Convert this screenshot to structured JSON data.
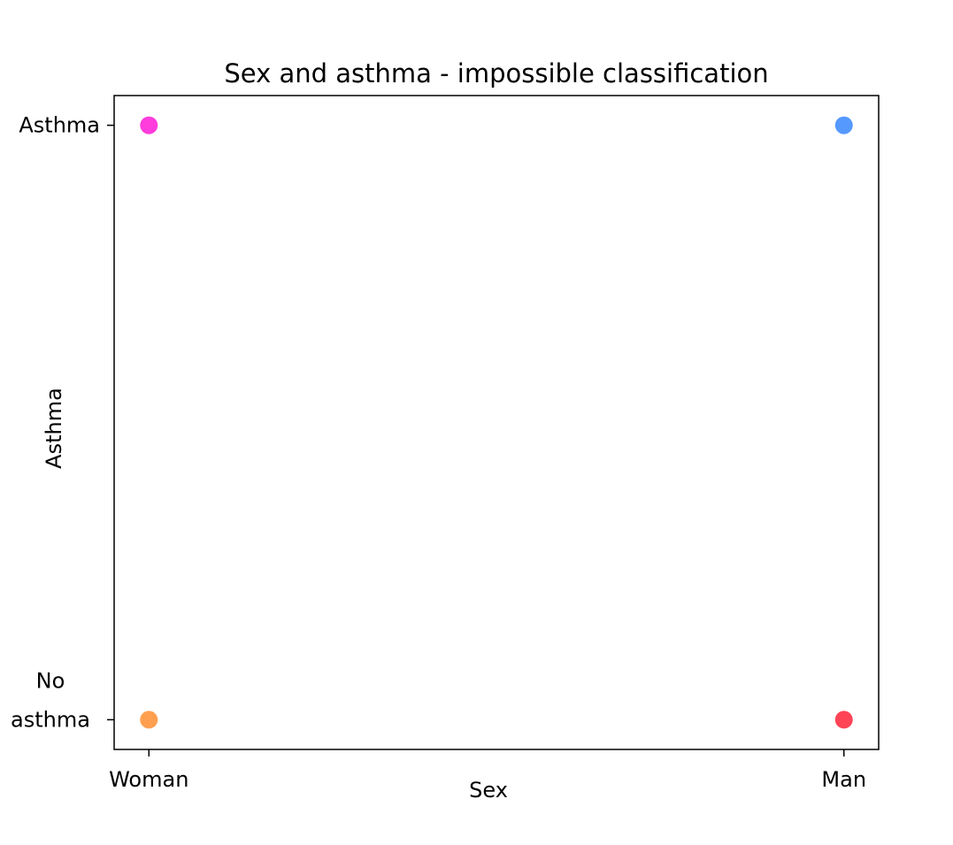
{
  "chart_data": {
    "type": "scatter",
    "title": "Sex and asthma - impossible classification",
    "xlabel": "Sex",
    "ylabel": "Asthma",
    "x_categories": [
      "Woman",
      "Man"
    ],
    "y_categories": [
      "No\nasthma",
      "Asthma"
    ],
    "xlim": [
      -0.05,
      1.05
    ],
    "ylim": [
      -0.05,
      1.05
    ],
    "grid": false,
    "points": [
      {
        "x": "Woman",
        "y": "Asthma",
        "color": "#ff3cdc"
      },
      {
        "x": "Man",
        "y": "Asthma",
        "color": "#5599ff"
      },
      {
        "x": "Woman",
        "y": "No\nasthma",
        "color": "#ffa050"
      },
      {
        "x": "Man",
        "y": "No\nasthma",
        "color": "#ff4455"
      }
    ]
  }
}
